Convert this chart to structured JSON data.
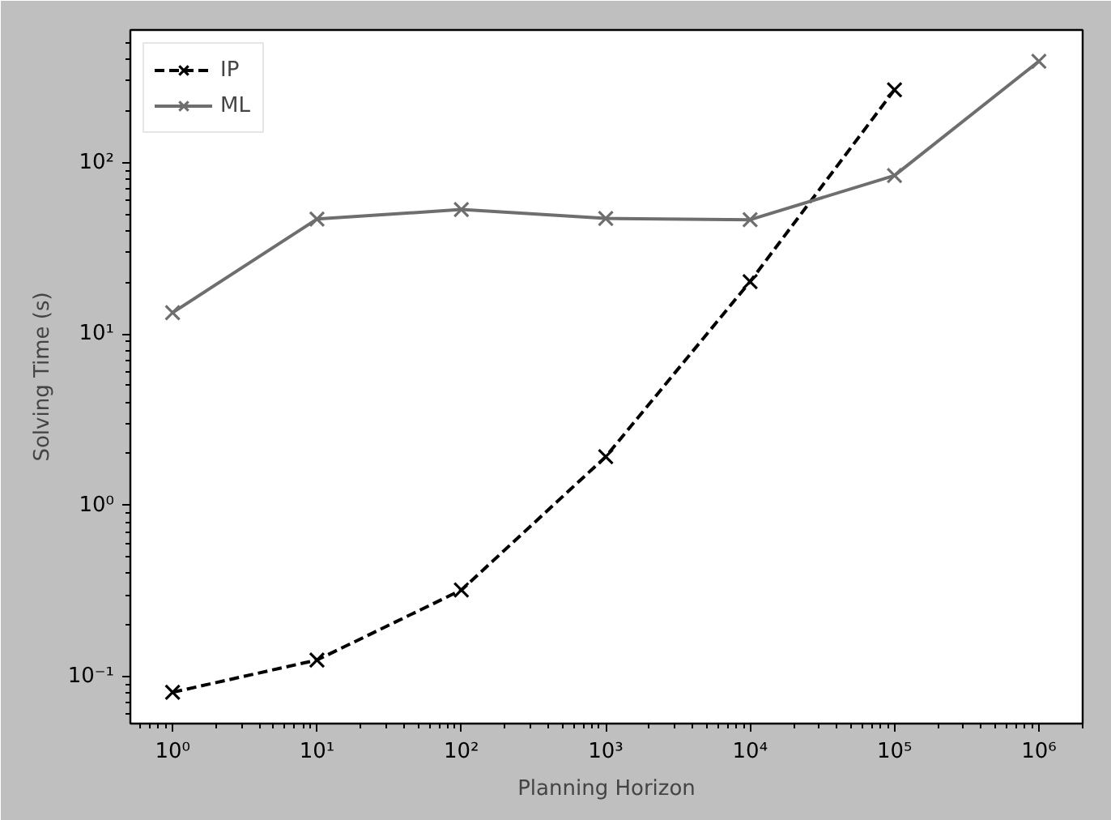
{
  "chart_data": {
    "type": "line",
    "xlabel": "Planning Horizon",
    "ylabel": "Solving Time (s)",
    "x": [
      1,
      10,
      100,
      1000,
      10000,
      100000,
      1000000
    ],
    "series": [
      {
        "name": "IP",
        "color": "#000000",
        "line_style": "dashed",
        "values": [
          0.081,
          0.125,
          0.32,
          1.92,
          20.2,
          266,
          null
        ]
      },
      {
        "name": "ML",
        "color": "#6e6e6e",
        "line_style": "solid",
        "values": [
          13.3,
          46.8,
          53.2,
          47.2,
          46.4,
          84,
          390
        ]
      }
    ],
    "log": "xy",
    "marker": "cross",
    "legend": "top left",
    "grid": false,
    "xlim": [
      0.51,
      2010000
    ],
    "ylim": [
      0.0532,
      594
    ],
    "xticks": [
      {
        "value": 1,
        "label": "10⁰"
      },
      {
        "value": 10,
        "label": "10¹"
      },
      {
        "value": 100,
        "label": "10²"
      },
      {
        "value": 1000,
        "label": "10³"
      },
      {
        "value": 10000,
        "label": "10⁴"
      },
      {
        "value": 100000,
        "label": "10⁵"
      },
      {
        "value": 1000000,
        "label": "10⁶"
      }
    ],
    "yticks": [
      {
        "value": 0.1,
        "label": "10⁻¹"
      },
      {
        "value": 1,
        "label": "10⁰"
      },
      {
        "value": 10,
        "label": "10¹"
      },
      {
        "value": 100,
        "label": "10²"
      }
    ]
  }
}
